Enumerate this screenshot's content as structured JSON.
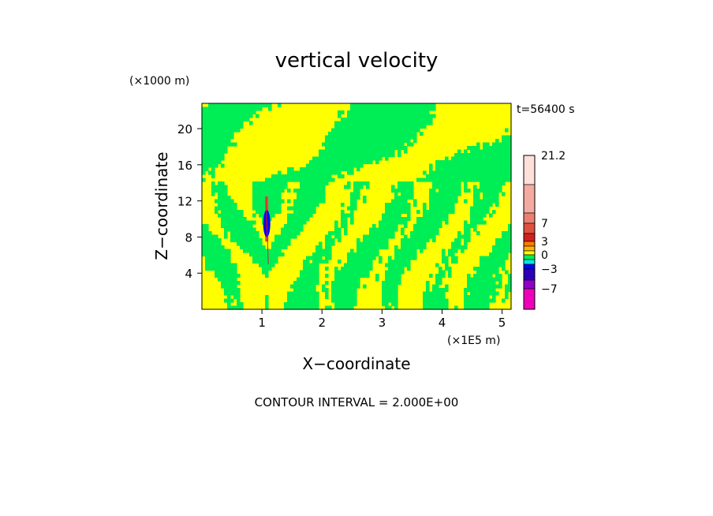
{
  "chart_data": {
    "type": "heatmap",
    "title": "vertical velocity",
    "xlabel": "X−coordinate",
    "ylabel": "Z−coordinate",
    "x_unit": "(×1E5 m)",
    "y_unit": "(×1000 m)",
    "time_label": "t=56400 s",
    "footer": "CONTOUR INTERVAL = 2.000E+00",
    "xlim": [
      0,
      5.15
    ],
    "ylim": [
      0,
      22.8
    ],
    "xticks": [
      1,
      2,
      3,
      4,
      5
    ],
    "xtick_labels": [
      "1",
      "2",
      "3",
      "4",
      "5"
    ],
    "yticks": [
      4,
      8,
      12,
      16,
      20
    ],
    "ytick_labels": [
      "4",
      "8",
      "12",
      "16",
      "20"
    ],
    "contour_interval": 2.0,
    "colorbar": {
      "label_values": [
        21.2,
        7,
        3,
        0,
        -3,
        -7
      ],
      "labels": [
        "21.2",
        "7",
        "3",
        "0",
        "−3",
        "−7"
      ],
      "levels": [
        {
          "lo": 13,
          "hi": 21.2,
          "color": "#fde0da"
        },
        {
          "lo": 9,
          "hi": 13,
          "color": "#f4aaa0"
        },
        {
          "lo": 7,
          "hi": 9,
          "color": "#ec8070"
        },
        {
          "lo": 5,
          "hi": 7,
          "color": "#e05040"
        },
        {
          "lo": 3,
          "hi": 5,
          "color": "#d02020"
        },
        {
          "lo": 2,
          "hi": 3,
          "color": "#ff7a00"
        },
        {
          "lo": 1,
          "hi": 2,
          "color": "#ffb400"
        },
        {
          "lo": 0,
          "hi": 1,
          "color": "#ffff00"
        },
        {
          "lo": -1,
          "hi": 0,
          "color": "#00ee55"
        },
        {
          "lo": -2,
          "hi": -1,
          "color": "#00e8e0"
        },
        {
          "lo": -3,
          "hi": -2,
          "color": "#0000ff"
        },
        {
          "lo": -5,
          "hi": -3,
          "color": "#2c00b8"
        },
        {
          "lo": -7,
          "hi": -5,
          "color": "#9000c8"
        },
        {
          "lo": -10,
          "hi": -7,
          "color": "#ee00bb"
        }
      ]
    },
    "field_summary": {
      "dominant_colors": [
        "#ffff00",
        "#00ee55"
      ],
      "updraft_core_x": 1.08,
      "updraft_core_z_range": [
        7.5,
        12.5
      ],
      "core_min": -3,
      "core_max": 3
    }
  }
}
